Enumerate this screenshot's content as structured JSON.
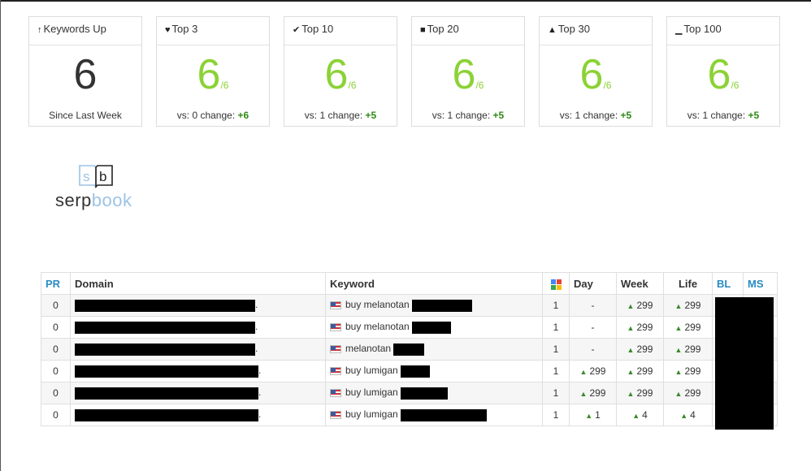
{
  "cards": [
    {
      "title": "Keywords Up",
      "icon": "arrow-up-icon",
      "glyph": "↑",
      "value": "6",
      "suffix": "",
      "footer_label": "Since Last Week",
      "footer_change": "",
      "green": false
    },
    {
      "title": "Top 3",
      "icon": "heart-icon",
      "glyph": "♥",
      "value": "6",
      "suffix": "/6",
      "footer_label": "vs: 0 change:",
      "footer_change": "+6",
      "green": true
    },
    {
      "title": "Top 10",
      "icon": "check-icon",
      "glyph": "✔",
      "value": "6",
      "suffix": "/6",
      "footer_label": "vs: 1 change:",
      "footer_change": "+5",
      "green": true
    },
    {
      "title": "Top 20",
      "icon": "bookmark-icon",
      "glyph": "■",
      "value": "6",
      "suffix": "/6",
      "footer_label": "vs: 1 change:",
      "footer_change": "+5",
      "green": true
    },
    {
      "title": "Top 30",
      "icon": "road-icon",
      "glyph": "▲",
      "value": "6",
      "suffix": "/6",
      "footer_label": "vs: 1 change:",
      "footer_change": "+5",
      "green": true
    },
    {
      "title": "Top 100",
      "icon": "signal-icon",
      "glyph": "▁",
      "value": "6",
      "suffix": "/6",
      "footer_label": "vs: 1 change:",
      "footer_change": "+5",
      "green": true
    }
  ],
  "logo": {
    "part1": "serp",
    "part2": "book"
  },
  "table": {
    "headers": {
      "pr": "PR",
      "domain": "Domain",
      "keyword": "Keyword",
      "day": "Day",
      "week": "Week",
      "life": "Life",
      "bl": "BL",
      "ms": "MS"
    },
    "rows": [
      {
        "pr": "0",
        "keyword": "buy melanotan",
        "google": "1",
        "day": "-",
        "week": "299",
        "life": "299",
        "day_up": false
      },
      {
        "pr": "0",
        "keyword": "buy melanotan",
        "google": "1",
        "day": "-",
        "week": "299",
        "life": "299",
        "day_up": false
      },
      {
        "pr": "0",
        "keyword": "melanotan",
        "google": "1",
        "day": "-",
        "week": "299",
        "life": "299",
        "day_up": false
      },
      {
        "pr": "0",
        "keyword": "buy lumigan",
        "google": "1",
        "day": "299",
        "week": "299",
        "life": "299",
        "day_up": true
      },
      {
        "pr": "0",
        "keyword": "buy lumigan",
        "google": "1",
        "day": "299",
        "week": "299",
        "life": "299",
        "day_up": true
      },
      {
        "pr": "0",
        "keyword": "buy lumigan",
        "google": "1",
        "day": "1",
        "week": "4",
        "life": "4",
        "day_up": true
      }
    ]
  },
  "colors": {
    "green_value": "#8bd235",
    "green_change": "#2c8a12",
    "header_blue": "#2a8bc4"
  }
}
